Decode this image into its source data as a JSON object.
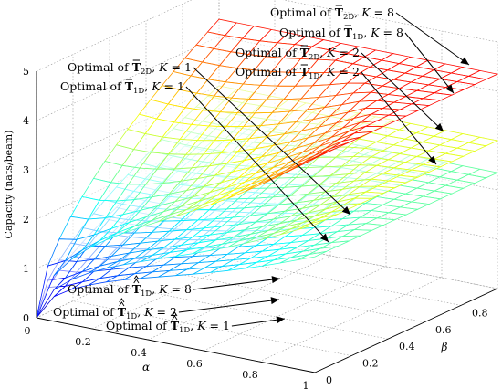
{
  "chart_data": {
    "type": "surface3d",
    "xlabel": "α",
    "ylabel": "β",
    "zlabel": "Capacity (nats/beam)",
    "xlim": [
      0,
      1
    ],
    "ylim": [
      0,
      1
    ],
    "zlim": [
      0,
      5
    ],
    "x_ticks": [
      "0",
      "0.2",
      "0.4",
      "0.6",
      "0.8",
      "1"
    ],
    "y_ticks": [
      "0",
      "0.2",
      "0.4",
      "0.6",
      "0.8",
      "1"
    ],
    "z_ticks": [
      "0",
      "1",
      "2",
      "3",
      "4",
      "5"
    ],
    "grid": true,
    "colormap": "jet",
    "surfaces": [
      {
        "K": 8,
        "peak": 4.35,
        "min": 0.0,
        "edge_x1_y1": 4.35
      },
      {
        "K": 2,
        "peak": 3.0,
        "min": 0.0,
        "edge_x1_y1": 3.0
      },
      {
        "K": 1,
        "peak": 2.35,
        "min": 0.0,
        "edge_x1_y1": 2.35
      }
    ],
    "annotations": [
      {
        "pre": "Optimal of ",
        "sym": "T",
        "decor": "bar",
        "sub": "2D",
        "k": "8"
      },
      {
        "pre": "Optimal of ",
        "sym": "T",
        "decor": "bar",
        "sub": "1D",
        "k": "8"
      },
      {
        "pre": "Optimal of ",
        "sym": "T",
        "decor": "bar",
        "sub": "2D",
        "k": "2"
      },
      {
        "pre": "Optimal of ",
        "sym": "T",
        "decor": "bar",
        "sub": "1D",
        "k": "2"
      },
      {
        "pre": "Optimal of ",
        "sym": "T",
        "decor": "bar",
        "sub": "2D",
        "k": "1"
      },
      {
        "pre": "Optimal of ",
        "sym": "T",
        "decor": "bar",
        "sub": "1D",
        "k": "1"
      },
      {
        "pre": "Optimal of ",
        "sym": "T",
        "decor": "hat",
        "sub": "1D",
        "k": "8"
      },
      {
        "pre": "Optimal of ",
        "sym": "T",
        "decor": "hat",
        "sub": "1D",
        "k": "2"
      },
      {
        "pre": "Optimal of ",
        "sym": "T",
        "decor": "hat",
        "sub": "1D",
        "k": "1"
      }
    ],
    "k_symbol": "K"
  }
}
